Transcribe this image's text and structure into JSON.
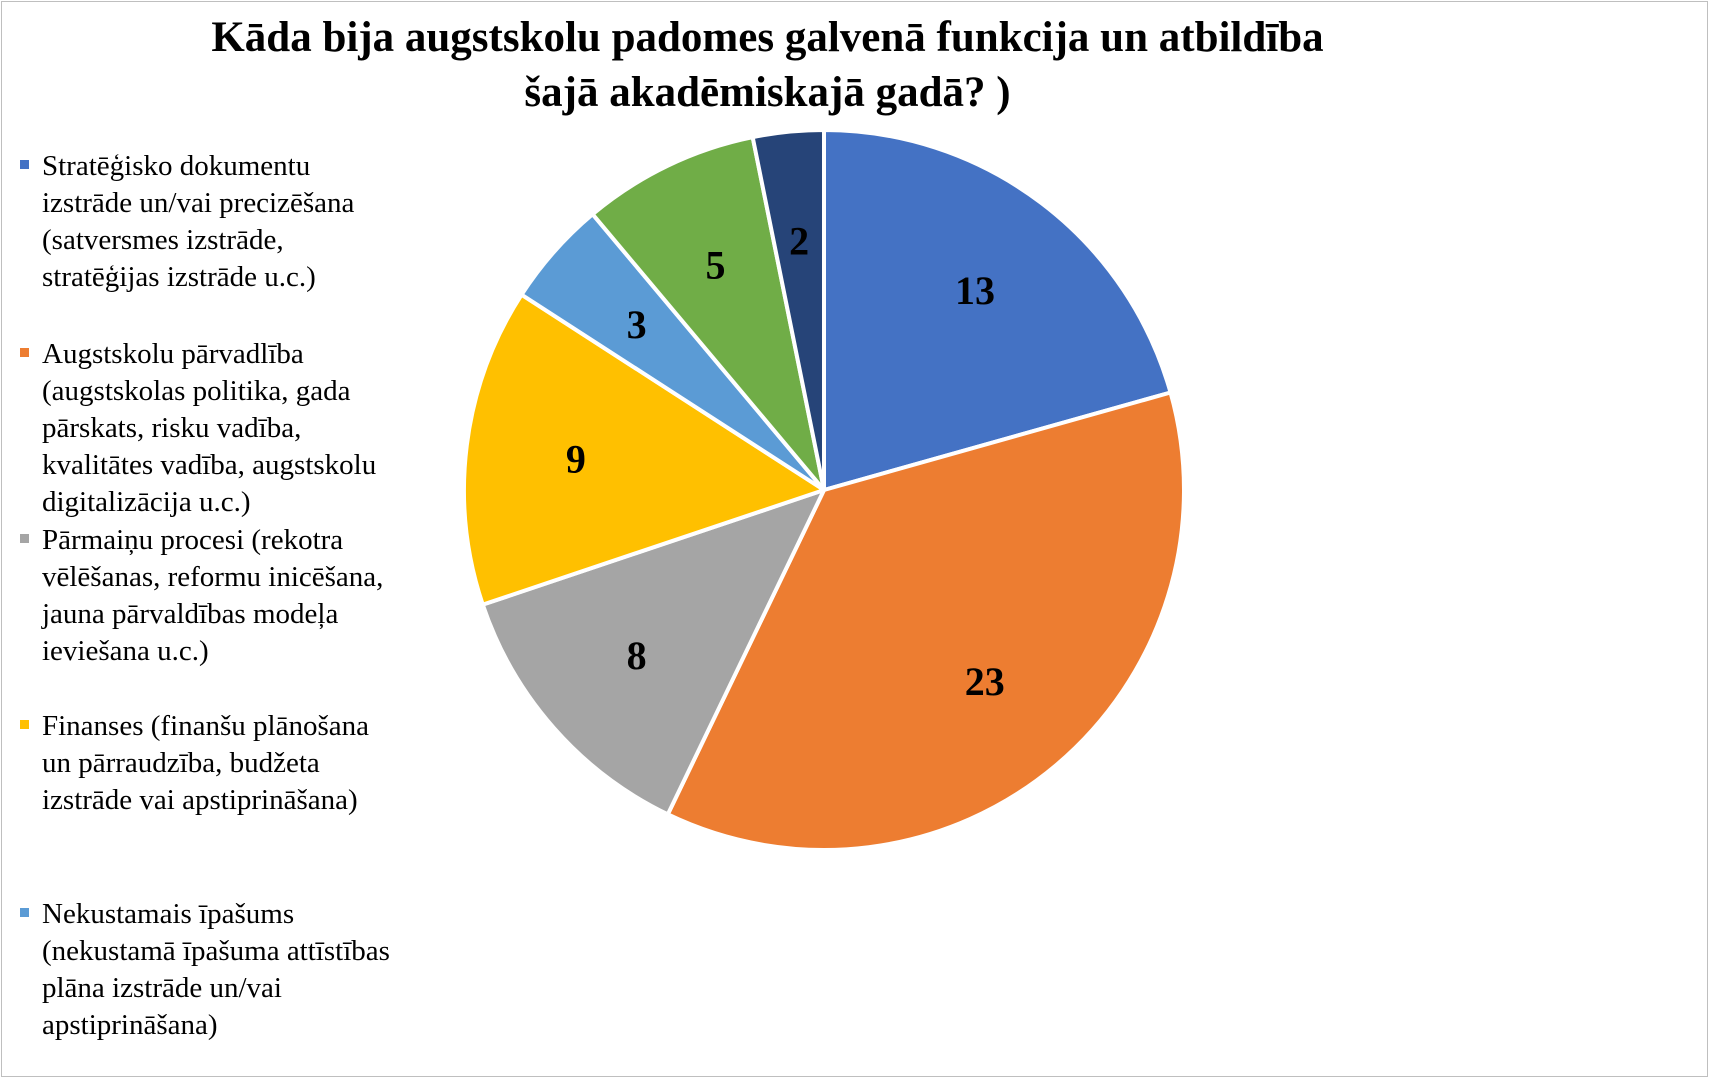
{
  "chart_data": {
    "type": "pie",
    "title_lines": [
      "Kāda bija augstskolu padomes galvenā funkcija un atbildība",
      "šajā akadēmiskajā gadā? )"
    ],
    "start_angle_deg": 0,
    "direction": "clockwise",
    "slices": [
      {
        "category_lines": [
          "Stratēģisko dokumentu",
          "izstrāde un/vai precizēšana",
          "(satversmes izstrāde,",
          "stratēģijas izstrāde u.c.)"
        ],
        "value": 13,
        "label": "13",
        "color": "#4472C4"
      },
      {
        "category_lines": [
          "Augstskolu pārvadlība",
          "(augstskolas politika, gada",
          "pārskats, risku vadība,",
          "kvalitātes vadība, augstskolu",
          "digitalizācija u.c.)"
        ],
        "value": 23,
        "label": "23",
        "color": "#ED7D31"
      },
      {
        "category_lines": [
          "Pārmaiņu procesi (rekotra",
          "vēlēšanas, reformu inicēšana,",
          "jauna pārvaldības modeļa",
          "ieviešana u.c.)"
        ],
        "value": 8,
        "label": "8",
        "color": "#A5A5A5"
      },
      {
        "category_lines": [
          "Finanses (finanšu plānošana",
          "un pārraudzība, budžeta",
          "izstrāde vai apstiprināšana)"
        ],
        "value": 9,
        "label": "9",
        "color": "#FFC000"
      },
      {
        "category_lines": [
          "Nekustamais īpašums",
          "(nekustamā īpašuma attīstības",
          "plāna izstrāde un/vai",
          "apstiprināšana)"
        ],
        "value": 3,
        "label": "3",
        "color": "#5B9BD5"
      },
      {
        "category_lines": [],
        "value": 5,
        "label": "5",
        "color": "#70AD47"
      },
      {
        "category_lines": [],
        "value": 2,
        "label": "2",
        "color": "#264478"
      }
    ],
    "legend_position": "left"
  }
}
